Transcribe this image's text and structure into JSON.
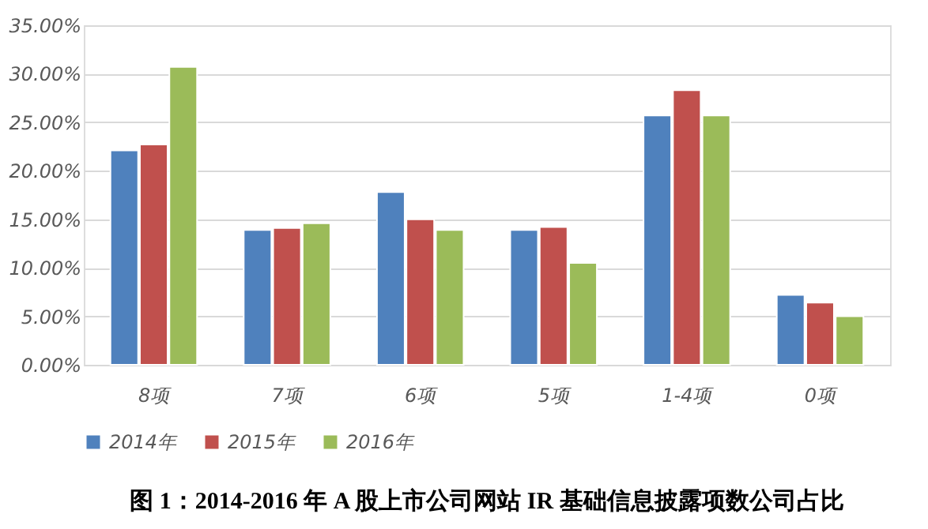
{
  "chart_data": {
    "type": "bar",
    "title": "图 1：2014-2016 年 A 股上市公司网站 IR 基础信息披露项数公司占比",
    "categories": [
      "8项",
      "7项",
      "6项",
      "5项",
      "1-4项",
      "0项"
    ],
    "series": [
      {
        "name": "2014年",
        "color": "#4f81bd",
        "values": [
          22.1,
          13.9,
          17.8,
          13.9,
          25.7,
          7.2
        ]
      },
      {
        "name": "2015年",
        "color": "#c0504d",
        "values": [
          22.7,
          14.1,
          15.0,
          14.2,
          28.3,
          6.4
        ]
      },
      {
        "name": "2016年",
        "color": "#9bbb59",
        "values": [
          30.7,
          14.6,
          13.9,
          10.5,
          25.7,
          5.0
        ]
      }
    ],
    "ylim": [
      0,
      35
    ],
    "yticks": [
      {
        "value": 0,
        "label": "0.00%"
      },
      {
        "value": 5,
        "label": "5.00%"
      },
      {
        "value": 10,
        "label": "10.00%"
      },
      {
        "value": 15,
        "label": "15.00%"
      },
      {
        "value": 20,
        "label": "20.00%"
      },
      {
        "value": 25,
        "label": "25.00%"
      },
      {
        "value": 30,
        "label": "30.00%"
      },
      {
        "value": 35,
        "label": "35.00%"
      }
    ],
    "grid": "y",
    "legend": "bottom"
  }
}
